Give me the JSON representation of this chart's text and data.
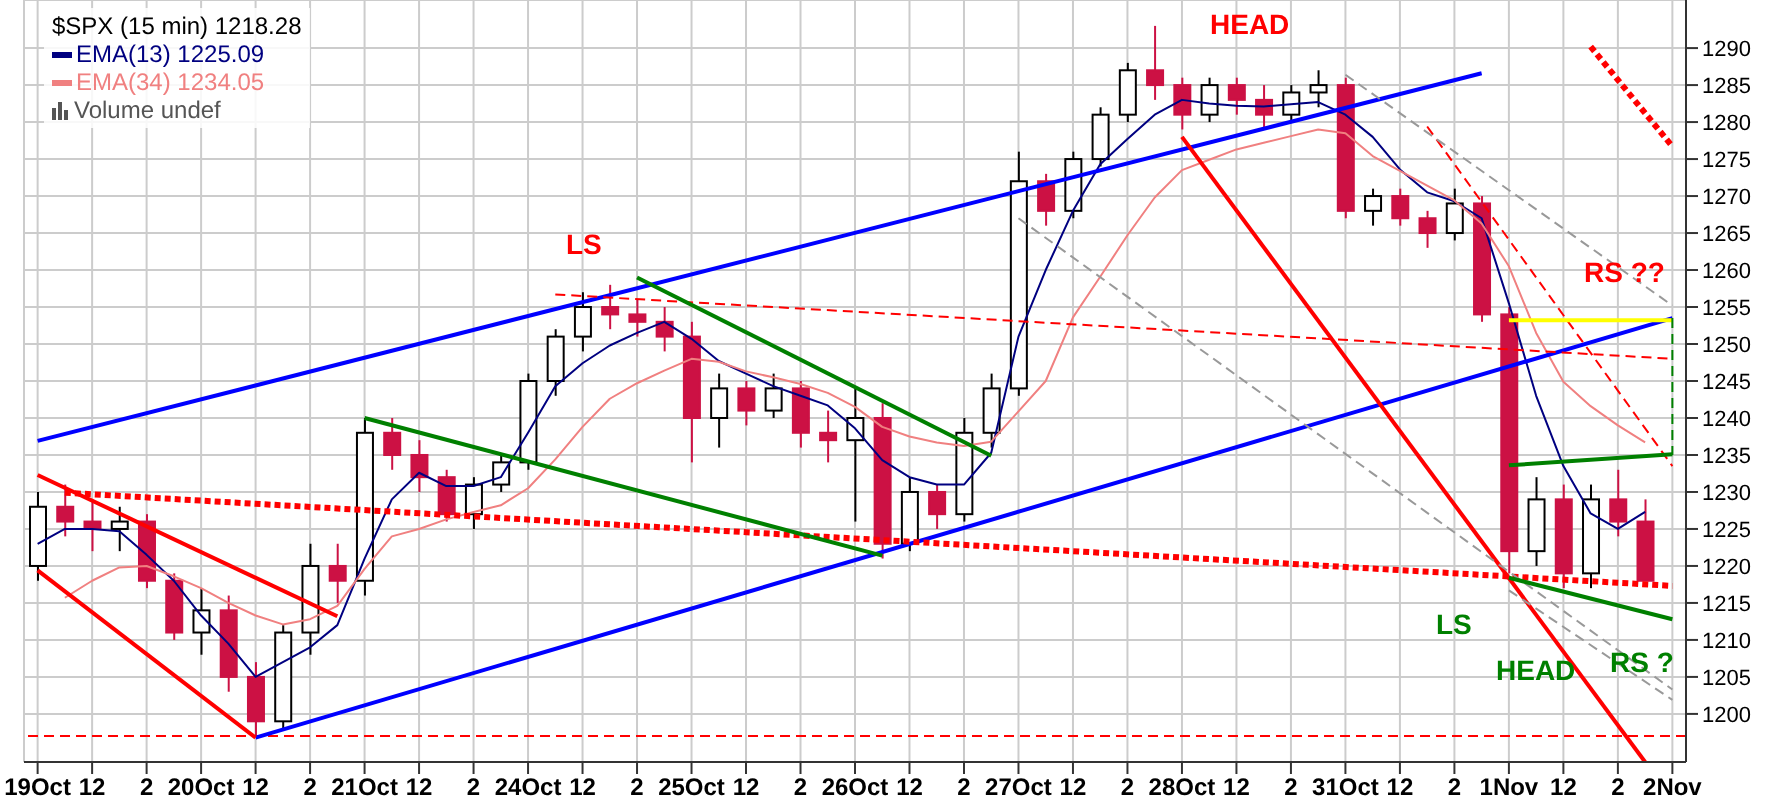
{
  "chart_data": {
    "type": "candlestick",
    "title": "$SPX (15 min) 1218.28",
    "legend": "top left",
    "grid": true,
    "annotations": [
      "Volume undef",
      "LS",
      "HEAD",
      "RS ??",
      "LS",
      "HEAD",
      "RS ?"
    ],
    "categories": [
      "19Oct",
      null,
      "12",
      null,
      "2",
      null,
      "20Oct",
      null,
      "12",
      null,
      "2",
      null,
      "21Oct",
      null,
      "12",
      null,
      "2",
      null,
      "24Oct",
      null,
      "12",
      null,
      "2",
      null,
      "25Oct",
      null,
      "12",
      null,
      "2",
      null,
      "26Oct",
      null,
      "12",
      null,
      "2",
      null,
      "27Oct",
      null,
      "12",
      null,
      "2",
      null,
      "28Oct",
      null,
      "12",
      null,
      "2",
      null,
      "31Oct",
      null,
      "12",
      null,
      "2",
      null,
      "1Nov",
      null,
      "12",
      null,
      "2",
      null,
      "2Nov"
    ],
    "ohlc": [
      [
        1220,
        1230,
        1218,
        1228
      ],
      [
        1228,
        1231,
        1224,
        1226
      ],
      [
        1226,
        1229,
        1222,
        1225
      ],
      [
        1225,
        1228,
        1222,
        1226
      ],
      [
        1226,
        1227,
        1217,
        1218
      ],
      [
        1218,
        1219,
        1210,
        1211
      ],
      [
        1211,
        1217,
        1208,
        1214
      ],
      [
        1214,
        1216,
        1203,
        1205
      ],
      [
        1205,
        1207,
        1197,
        1199
      ],
      [
        1199,
        1212,
        1198,
        1211
      ],
      [
        1211,
        1223,
        1208,
        1220
      ],
      [
        1220,
        1223,
        1215,
        1218
      ],
      [
        1218,
        1240,
        1216,
        1238
      ],
      [
        1238,
        1240,
        1233,
        1235
      ],
      [
        1235,
        1237,
        1230,
        1232
      ],
      [
        1232,
        1233,
        1226,
        1227
      ],
      [
        1227,
        1232,
        1225,
        1231
      ],
      [
        1231,
        1235,
        1230,
        1234
      ],
      [
        1234,
        1246,
        1233,
        1245
      ],
      [
        1245,
        1252,
        1243,
        1251
      ],
      [
        1251,
        1257,
        1249,
        1255
      ],
      [
        1255,
        1258,
        1252,
        1254
      ],
      [
        1254,
        1256,
        1251,
        1253
      ],
      [
        1253,
        1255,
        1249,
        1251
      ],
      [
        1251,
        1253,
        1234,
        1240
      ],
      [
        1240,
        1246,
        1236,
        1244
      ],
      [
        1244,
        1245,
        1239,
        1241
      ],
      [
        1241,
        1246,
        1240,
        1244
      ],
      [
        1244,
        1245,
        1236,
        1238
      ],
      [
        1238,
        1241,
        1234,
        1237
      ],
      [
        1237,
        1244,
        1226,
        1240
      ],
      [
        1240,
        1242,
        1221,
        1223
      ],
      [
        1223,
        1232,
        1222,
        1230
      ],
      [
        1230,
        1231,
        1225,
        1227
      ],
      [
        1227,
        1240,
        1226,
        1238
      ],
      [
        1238,
        1246,
        1236,
        1244
      ],
      [
        1244,
        1276,
        1243,
        1272
      ],
      [
        1272,
        1273,
        1266,
        1268
      ],
      [
        1268,
        1276,
        1267,
        1275
      ],
      [
        1275,
        1282,
        1274,
        1281
      ],
      [
        1281,
        1288,
        1280,
        1287
      ],
      [
        1287,
        1293,
        1283,
        1285
      ],
      [
        1285,
        1286,
        1279,
        1281
      ],
      [
        1281,
        1286,
        1280,
        1285
      ],
      [
        1285,
        1286,
        1281,
        1283
      ],
      [
        1283,
        1285,
        1279,
        1281
      ],
      [
        1281,
        1285,
        1280,
        1284
      ],
      [
        1284,
        1287,
        1282,
        1285
      ],
      [
        1285,
        1286,
        1267,
        1268
      ],
      [
        1268,
        1271,
        1266,
        1270
      ],
      [
        1270,
        1271,
        1266,
        1267
      ],
      [
        1267,
        1268,
        1263,
        1265
      ],
      [
        1265,
        1271,
        1264,
        1269
      ],
      [
        1269,
        1270,
        1253,
        1254
      ],
      [
        1254,
        1255,
        1219,
        1222
      ],
      [
        1222,
        1232,
        1220,
        1229
      ],
      [
        1229,
        1231,
        1217,
        1219
      ],
      [
        1219,
        1231,
        1217,
        1229
      ],
      [
        1229,
        1233,
        1224,
        1226
      ],
      [
        1226,
        1229,
        1218,
        1218
      ],
      null
    ],
    "series": [
      {
        "type": "line",
        "name": "EMA(13) 1225.09",
        "color": "#000080",
        "values": [
          1223,
          1225,
          1225,
          1224.7,
          1221.5,
          1218,
          1213.3,
          1209.5,
          1205,
          1207,
          1209,
          1212,
          1221,
          1229,
          1232.6,
          1230.8,
          1230.8,
          1232,
          1238,
          1244.3,
          1247.4,
          1249.8,
          1251.5,
          1253,
          1250.7,
          1247.7,
          1246,
          1244.3,
          1243,
          1241.7,
          1238.6,
          1234.3,
          1232,
          1231,
          1231,
          1235.3,
          1251,
          1260,
          1268,
          1274.3,
          1277.7,
          1281,
          1283,
          1282.5,
          1282.2,
          1282.1,
          1282.4,
          1282.7,
          1281,
          1278,
          1273.6,
          1270.5,
          1269.3,
          1267,
          1255.5,
          1243,
          1233.5,
          1227.1,
          1225,
          1227.3,
          null
        ]
      },
      {
        "type": "line",
        "name": "EMA(34) 1234.05",
        "color": "#f08080",
        "values": [
          null,
          1215.7,
          1218,
          1219.8,
          1220,
          1218.6,
          1217,
          1215,
          1213.3,
          1212.1,
          1212.8,
          1214.6,
          1219.6,
          1224,
          1225,
          1226.3,
          1227.3,
          1228.2,
          1230.5,
          1234.4,
          1238.8,
          1242.6,
          1244.7,
          1246.4,
          1248,
          1247.6,
          1246.3,
          1245.5,
          1244.6,
          1243.4,
          1241.5,
          1238.8,
          1237.5,
          1236.7,
          1236.2,
          1236.8,
          1240.9,
          1245,
          1253.6,
          1259.1,
          1264.7,
          1269.8,
          1273.5,
          1274.9,
          1276.3,
          1277.2,
          1278.1,
          1279,
          1278.5,
          1275.4,
          1273.4,
          1271.4,
          1269.4,
          1266.3,
          1260.5,
          1251.5,
          1244.9,
          1241.6,
          1239,
          1236.7,
          null
        ]
      },
      {
        "type": "line",
        "color": "#0000ff",
        "values": [
          1236.9,
          null,
          null,
          null,
          null,
          null,
          null,
          null,
          null,
          null,
          null,
          null,
          null,
          null,
          null,
          null,
          null,
          null,
          null,
          null,
          null,
          null,
          null,
          null,
          null,
          null,
          null,
          null,
          null,
          null,
          null,
          null,
          null,
          null,
          null,
          null,
          null,
          null,
          null,
          null,
          null,
          null,
          null,
          null,
          null,
          null,
          null,
          null,
          null,
          null,
          null,
          null,
          null,
          1286.6,
          null,
          null,
          null,
          null,
          null,
          null,
          null
        ]
      },
      {
        "type": "line",
        "color": "#0000ff",
        "values": [
          null,
          null,
          null,
          null,
          null,
          null,
          null,
          null,
          1196.8,
          null,
          null,
          null,
          null,
          null,
          null,
          null,
          null,
          null,
          null,
          null,
          null,
          null,
          null,
          null,
          null,
          null,
          null,
          null,
          null,
          null,
          null,
          null,
          null,
          null,
          null,
          null,
          null,
          null,
          null,
          null,
          null,
          null,
          null,
          null,
          null,
          null,
          null,
          null,
          null,
          null,
          null,
          null,
          null,
          null,
          null,
          null,
          null,
          null,
          null,
          null,
          1253.5
        ]
      },
      {
        "type": "line",
        "color": "#ff0000",
        "values": [
          1232.3,
          null,
          null,
          null,
          null,
          null,
          null,
          null,
          null,
          null,
          null,
          1213.2,
          null,
          null,
          null,
          null,
          null,
          null,
          null,
          null,
          null,
          null,
          null,
          null,
          null,
          null,
          null,
          null,
          null,
          null,
          null,
          null,
          null,
          null,
          null,
          null,
          null,
          null,
          null,
          null,
          null,
          null,
          null,
          null,
          null,
          null,
          null,
          null,
          null,
          null,
          null,
          null,
          null,
          null,
          null,
          null,
          null,
          null,
          null,
          null,
          null
        ]
      },
      {
        "type": "line",
        "color": "#ff0000",
        "values": [
          1219.4,
          null,
          null,
          null,
          null,
          null,
          null,
          null,
          1196.8,
          null,
          null,
          null,
          null,
          null,
          null,
          null,
          null,
          null,
          null,
          null,
          null,
          null,
          null,
          null,
          null,
          null,
          null,
          null,
          null,
          null,
          null,
          null,
          null,
          null,
          null,
          null,
          null,
          null,
          null,
          null,
          null,
          null,
          null,
          null,
          null,
          null,
          null,
          null,
          null,
          null,
          null,
          null,
          null,
          null,
          null,
          null,
          null,
          null,
          null,
          null,
          null
        ]
      },
      {
        "type": "line",
        "color": "#ff0000",
        "values": [
          null,
          null,
          null,
          null,
          null,
          null,
          null,
          null,
          null,
          null,
          null,
          null,
          null,
          null,
          null,
          null,
          null,
          null,
          null,
          null,
          null,
          null,
          null,
          null,
          null,
          null,
          null,
          null,
          null,
          null,
          null,
          null,
          null,
          null,
          null,
          null,
          null,
          null,
          null,
          null,
          null,
          null,
          1278,
          null,
          null,
          null,
          null,
          null,
          null,
          null,
          null,
          null,
          null,
          null,
          null,
          null,
          null,
          null,
          null,
          1193.5,
          null
        ]
      },
      {
        "type": "line",
        "color": "#ff0000",
        "line_style": "dotted",
        "values": [
          null,
          1229.9,
          null,
          null,
          null,
          null,
          null,
          null,
          null,
          null,
          null,
          null,
          null,
          null,
          null,
          null,
          null,
          null,
          null,
          null,
          null,
          null,
          null,
          null,
          null,
          null,
          null,
          null,
          null,
          null,
          null,
          null,
          null,
          null,
          null,
          null,
          null,
          null,
          null,
          null,
          null,
          null,
          null,
          null,
          null,
          null,
          null,
          null,
          null,
          null,
          null,
          null,
          null,
          null,
          null,
          null,
          null,
          null,
          null,
          null,
          1217.3
        ]
      },
      {
        "type": "line",
        "color": "#ff0000",
        "line_style": "dashed",
        "values": [
          null,
          null,
          null,
          null,
          null,
          null,
          null,
          null,
          null,
          null,
          null,
          null,
          null,
          null,
          null,
          null,
          null,
          null,
          null,
          1256.7,
          null,
          null,
          null,
          null,
          null,
          null,
          null,
          null,
          null,
          null,
          null,
          null,
          null,
          null,
          null,
          null,
          null,
          null,
          null,
          null,
          null,
          null,
          null,
          null,
          null,
          null,
          null,
          null,
          null,
          null,
          null,
          null,
          null,
          null,
          null,
          null,
          null,
          null,
          null,
          null,
          1248
        ]
      },
      {
        "type": "line",
        "color": "#ff0000",
        "line_style": "dotted",
        "values": [
          null,
          null,
          null,
          null,
          null,
          null,
          null,
          null,
          null,
          null,
          null,
          null,
          null,
          null,
          null,
          null,
          null,
          null,
          null,
          null,
          null,
          null,
          null,
          null,
          null,
          null,
          null,
          null,
          null,
          null,
          null,
          null,
          null,
          null,
          null,
          null,
          null,
          null,
          null,
          null,
          null,
          null,
          null,
          null,
          null,
          null,
          null,
          null,
          null,
          null,
          null,
          null,
          null,
          null,
          null,
          null,
          null,
          1290.2,
          null,
          null,
          1276.7
        ]
      },
      {
        "type": "line",
        "color": "#ff0000",
        "line_style": "dashed",
        "values": [
          null,
          null,
          null,
          null,
          null,
          null,
          null,
          null,
          null,
          null,
          null,
          null,
          null,
          null,
          null,
          null,
          null,
          null,
          null,
          null,
          null,
          null,
          null,
          null,
          null,
          null,
          null,
          null,
          null,
          null,
          null,
          null,
          null,
          null,
          null,
          null,
          null,
          null,
          null,
          null,
          null,
          null,
          null,
          null,
          null,
          null,
          null,
          null,
          null,
          null,
          null,
          1279.4,
          null,
          null,
          null,
          null,
          null,
          null,
          null,
          null,
          1233.5
        ]
      },
      {
        "type": "line",
        "color": "#999999",
        "line_style": "dashed",
        "values": [
          null,
          null,
          null,
          null,
          null,
          null,
          null,
          null,
          null,
          null,
          null,
          null,
          null,
          null,
          null,
          null,
          null,
          null,
          null,
          null,
          null,
          null,
          null,
          null,
          null,
          null,
          null,
          null,
          null,
          null,
          null,
          null,
          null,
          null,
          null,
          null,
          null,
          null,
          null,
          null,
          null,
          null,
          null,
          null,
          null,
          null,
          null,
          null,
          1286.4,
          null,
          null,
          null,
          null,
          null,
          null,
          null,
          null,
          null,
          null,
          null,
          1255.2
        ]
      },
      {
        "type": "line",
        "color": "#999999",
        "line_style": "dashed",
        "values": [
          null,
          null,
          null,
          null,
          null,
          null,
          null,
          null,
          null,
          null,
          null,
          null,
          null,
          null,
          null,
          null,
          null,
          null,
          null,
          null,
          null,
          null,
          null,
          null,
          null,
          null,
          null,
          null,
          null,
          null,
          null,
          null,
          null,
          null,
          null,
          null,
          1267,
          null,
          null,
          null,
          null,
          null,
          null,
          null,
          null,
          null,
          null,
          null,
          null,
          null,
          null,
          null,
          null,
          null,
          null,
          null,
          null,
          null,
          null,
          null,
          1203.3
        ]
      },
      {
        "type": "line",
        "color": "#999999",
        "line_style": "dashed",
        "x": [
          "1Nov",
          "2Nov"
        ],
        "values": [
          1216.7,
          1201.9
        ]
      },
      {
        "type": "line",
        "color": "#008000",
        "values": [
          null,
          null,
          null,
          null,
          null,
          null,
          null,
          null,
          null,
          null,
          null,
          null,
          1240,
          null,
          null,
          null,
          null,
          null,
          null,
          null,
          null,
          null,
          null,
          null,
          null,
          null,
          null,
          null,
          null,
          null,
          null,
          1221.4,
          null,
          null,
          null,
          null,
          null,
          null,
          null,
          null,
          null,
          null,
          null,
          null,
          null,
          null,
          null,
          null,
          null,
          null,
          null,
          null,
          null,
          null,
          null,
          null,
          null,
          null,
          null,
          null,
          null
        ]
      },
      {
        "type": "line",
        "color": "#008000",
        "values": [
          null,
          null,
          null,
          null,
          null,
          null,
          null,
          null,
          null,
          null,
          null,
          null,
          null,
          null,
          null,
          null,
          null,
          null,
          null,
          null,
          null,
          null,
          1259,
          null,
          null,
          null,
          null,
          null,
          null,
          null,
          null,
          null,
          null,
          null,
          null,
          1234.9,
          null,
          null,
          null,
          null,
          null,
          null,
          null,
          null,
          null,
          null,
          null,
          null,
          null,
          null,
          null,
          null,
          null,
          null,
          null,
          null,
          null,
          null,
          null,
          null,
          null
        ]
      },
      {
        "type": "line",
        "color": "#008000",
        "x": [
          "1Nov",
          "2Nov"
        ],
        "values": [
          1233.6,
          1235.1
        ]
      },
      {
        "type": "line",
        "color": "#008000",
        "x": [
          "1Nov",
          "2Nov"
        ],
        "values": [
          1218.4,
          1212.8
        ]
      },
      {
        "type": "line",
        "color": "#ffff00",
        "x": [
          "1Nov",
          "2Nov"
        ],
        "values": [
          1253.2,
          1253.2
        ]
      },
      {
        "type": "line",
        "color": "#008000",
        "line_style": "dashed",
        "x": [
          "2Nov",
          "2Nov"
        ],
        "values": [
          1253.5,
          1235
        ]
      }
    ],
    "ref_lines": [
      {
        "axis": "y",
        "value": 1197,
        "color": "#ff0000",
        "line_style": "dashed"
      }
    ],
    "ylim": [
      1193.5,
      1296.5
    ],
    "yticks": [
      1200,
      1205,
      1210,
      1215,
      1220,
      1225,
      1230,
      1235,
      1240,
      1245,
      1250,
      1255,
      1260,
      1265,
      1270,
      1275,
      1280,
      1285,
      1290
    ]
  }
}
